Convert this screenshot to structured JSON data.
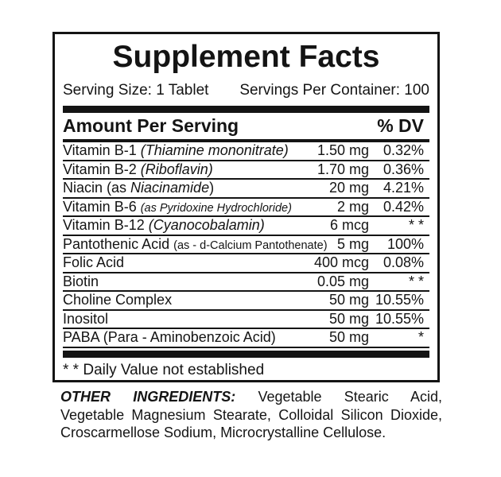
{
  "colors": {
    "ink": "#141414",
    "background": "#ffffff"
  },
  "panel": {
    "title": "Supplement Facts",
    "serving_size": "Serving Size: 1 Tablet",
    "servings_per_container": "Servings Per Container: 100",
    "amount_header": "Amount Per Serving",
    "dv_header": "% DV",
    "rows": [
      {
        "name": "Vitamin B-1 ",
        "qual": "(Thiamine mononitrate)",
        "amount": "1.50 mg",
        "dv": "0.32%"
      },
      {
        "name": "Vitamin B-2 ",
        "qual": "(Riboflavin)",
        "amount": "1.70 mg",
        "dv": "0.36%"
      },
      {
        "name": "Niacin (as ",
        "qual": "Niacinamide",
        "suffix": ")",
        "amount": "20 mg",
        "dv": "4.21%"
      },
      {
        "name": "Vitamin B-6 ",
        "qual": "(as Pyridoxine Hydrochloride)",
        "amount": "2 mg",
        "dv": "0.42%"
      },
      {
        "name": "Vitamin B-12 ",
        "qual": "(Cyanocobalamin)",
        "amount": "6 mcg",
        "dv": "* *"
      },
      {
        "name": "Pantothenic Acid ",
        "qual": "(as - d-Calcium Pantothenate)",
        "amount": "5 mg",
        "dv": "100%"
      },
      {
        "name": "Folic Acid",
        "amount": "400 mcg",
        "dv": "0.08%"
      },
      {
        "name": "Biotin",
        "amount": "0.05 mg",
        "dv": "* *"
      },
      {
        "name": "Choline Complex",
        "amount": "50 mg",
        "dv": "10.55%"
      },
      {
        "name": "Inositol",
        "amount": "50 mg",
        "dv": "10.55%"
      },
      {
        "name": "PABA (Para - Aminobenzoic Acid)",
        "amount": "50 mg",
        "dv": "*"
      }
    ],
    "footnote": "* * Daily Value not established"
  },
  "other_ingredients": {
    "label": "OTHER INGREDIENTS:",
    "line1": "Vegetable Stearic Acid,",
    "line2": "Vegetable Magnesium Stearate, Colloidal Silicon Dioxide,",
    "line3": "Croscarmellose Sodium, Microcrystalline Cellulose."
  }
}
